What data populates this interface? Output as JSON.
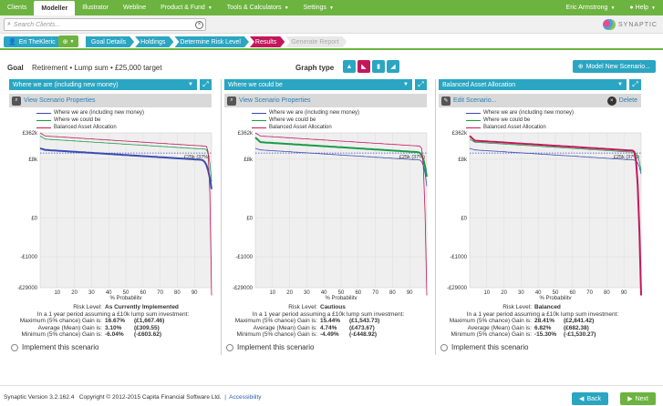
{
  "nav": {
    "tabs": [
      "Clients",
      "Modeller",
      "Illustrator",
      "Webline",
      "Product & Fund",
      "Tools & Calculators",
      "Settings"
    ],
    "user": "Eric Armstrong",
    "help": "Help"
  },
  "search": {
    "placeholder": "Search Clients..."
  },
  "brand": "SYNAPTIC",
  "client": {
    "name": "Eri TheKleric"
  },
  "steps": [
    "Goal Details",
    "Holdings",
    "Determine Risk Level",
    "Results",
    "Generate Report"
  ],
  "goal": {
    "label": "Goal",
    "text": "Retirement • Lump sum • £25,000 target",
    "graph_type_label": "Graph type",
    "model_button": "Model New Scenario..."
  },
  "legend": [
    "Where we are (including new money)",
    "Where we could be",
    "Balanced Asset Allocation"
  ],
  "colors": {
    "blue": "#3a4bb3",
    "green": "#1a9a4a",
    "crimson": "#c2185b",
    "teal": "#2aa6c2",
    "brandGreen": "#6db33f"
  },
  "panels": [
    {
      "dropdown": "Where we are (including new money)",
      "action": "View Scenario Properties",
      "risk_level": "As Currently Implemented",
      "max": "16.67%",
      "max_val": "(£1,667.46)",
      "avg": "3.10%",
      "avg_val": "(£309.55)",
      "min": "-6.04%",
      "min_val": "(-£603.62)"
    },
    {
      "dropdown": "Where we could be",
      "action": "View Scenario Properties",
      "risk_level": "Cautious",
      "max": "15.44%",
      "max_val": "(£1,543.73)",
      "avg": "4.74%",
      "avg_val": "(£473.67)",
      "min": "-4.49%",
      "min_val": "(-£448.92)"
    },
    {
      "dropdown": "Balanced Asset Allocation",
      "action": "Edit Scenario...",
      "delete": "Delete",
      "risk_level": "Balanced",
      "max": "28.41%",
      "max_val": "(£2,841.42)",
      "avg": "6.82%",
      "avg_val": "(£682.38)",
      "min": "-15.30%",
      "min_val": "(-£1,530.27)"
    }
  ],
  "risk_labels": {
    "level": "Risk Level:",
    "period": "In a 1 year period assuming a £10k lump sum investment:",
    "max": "Maximum (5% chance) Gain is:",
    "avg": "Average (Mean) Gain is:",
    "min": "Minimum (5% chance) Gain is:"
  },
  "implement": "Implement this scenario",
  "chart_data": {
    "type": "line",
    "y_tick_labels": [
      "£362k",
      "£8k",
      "£0",
      "-£1000",
      "-£29000"
    ],
    "x_ticks": [
      10,
      20,
      30,
      40,
      50,
      60,
      70,
      80,
      90
    ],
    "xlabel": "% Probability",
    "target_label": "£25k (37%)",
    "series": [
      {
        "name": "Where we are (including new money)"
      },
      {
        "name": "Where we could be"
      },
      {
        "name": "Balanced Asset Allocation"
      }
    ]
  },
  "footer": {
    "version": "Synaptic Version 3.2.162.4",
    "copyright": "Copyright © 2012-2015 Capita Financial Software Ltd.",
    "accessibility": "Accessibility",
    "back": "Back",
    "next": "Next"
  }
}
